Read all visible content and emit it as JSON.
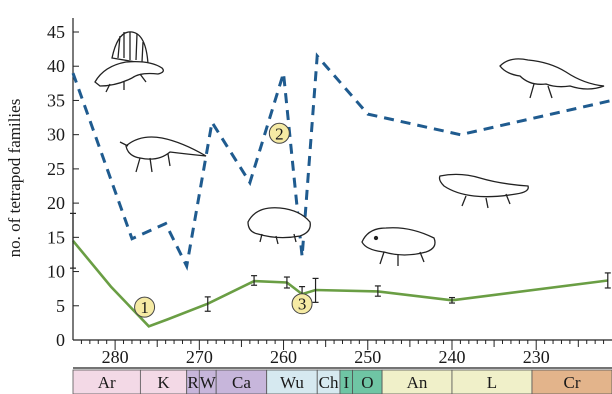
{
  "chart_data": {
    "type": "line",
    "xlabel": "",
    "ylabel": "no. of tetrapod families",
    "xlim": [
      285,
      221
    ],
    "ylim": [
      0,
      45
    ],
    "x_ticks": [
      280,
      270,
      260,
      250,
      240,
      230
    ],
    "y_ticks": [
      0,
      5,
      10,
      15,
      20,
      25,
      30,
      35,
      40,
      45
    ],
    "series": [
      {
        "style": "dashed",
        "color": "#1f5b8f",
        "points": [
          {
            "x": 285,
            "y": 39
          },
          {
            "x": 278,
            "y": 14.8
          },
          {
            "x": 274,
            "y": 17
          },
          {
            "x": 271.5,
            "y": 10.8
          },
          {
            "x": 268.5,
            "y": 31.8
          },
          {
            "x": 264,
            "y": 23
          },
          {
            "x": 260,
            "y": 39
          },
          {
            "x": 257.8,
            "y": 12.2
          },
          {
            "x": 256,
            "y": 41.5
          },
          {
            "x": 250,
            "y": 33
          },
          {
            "x": 239,
            "y": 30
          },
          {
            "x": 221,
            "y": 35
          }
        ]
      },
      {
        "style": "solid",
        "color": "#6a9e44",
        "points": [
          {
            "x": 285,
            "y": 14.5,
            "err": [
              10.5,
              18.5
            ]
          },
          {
            "x": 280.5,
            "y": 7.8
          },
          {
            "x": 276,
            "y": 2
          },
          {
            "x": 273.8,
            "y": 3
          },
          {
            "x": 269,
            "y": 5.3,
            "err": [
              4.2,
              6.3
            ]
          },
          {
            "x": 263.5,
            "y": 8.6,
            "err": [
              8.0,
              9.4
            ]
          },
          {
            "x": 259.6,
            "y": 8.4,
            "err": [
              7.6,
              9.2
            ]
          },
          {
            "x": 257.8,
            "y": 6.7,
            "err": [
              5.8,
              7.8
            ]
          },
          {
            "x": 256.2,
            "y": 7.3,
            "err": [
              5.5,
              9.0
            ]
          },
          {
            "x": 248.8,
            "y": 7.1,
            "err": [
              6.4,
              7.9
            ]
          },
          {
            "x": 240,
            "y": 5.8,
            "err": [
              5.4,
              6.2
            ]
          },
          {
            "x": 221.5,
            "y": 8.7,
            "err": [
              7.6,
              9.8
            ]
          }
        ]
      }
    ],
    "annotations": [
      {
        "text": "1",
        "x": 276.5,
        "y": 4.8
      },
      {
        "text": "2",
        "x": 260.5,
        "y": 30.2
      },
      {
        "text": "3",
        "x": 257.8,
        "y": 5.3
      }
    ],
    "stages": [
      {
        "label": "Ar",
        "from": 285,
        "to": 277,
        "color": "#f3d9e6"
      },
      {
        "label": "K",
        "from": 277,
        "to": 271.5,
        "color": "#f3d9e6"
      },
      {
        "label": "R",
        "from": 271.5,
        "to": 270,
        "color": "#c7b6db"
      },
      {
        "label": "W",
        "from": 270,
        "to": 268,
        "color": "#c7b6db"
      },
      {
        "label": "Ca",
        "from": 268,
        "to": 262,
        "color": "#c7b6db"
      },
      {
        "label": "Wu",
        "from": 262,
        "to": 256,
        "color": "#d6e9f0"
      },
      {
        "label": "Ch",
        "from": 256,
        "to": 253.3,
        "color": "#d6e9f0"
      },
      {
        "label": "I",
        "from": 253.3,
        "to": 251.8,
        "color": "#6fc5a4"
      },
      {
        "label": "O",
        "from": 251.8,
        "to": 248.3,
        "color": "#6fc5a4"
      },
      {
        "label": "An",
        "from": 248.3,
        "to": 240,
        "color": "#f0f0c9"
      },
      {
        "label": "L",
        "from": 240,
        "to": 230.5,
        "color": "#f0f0c9"
      },
      {
        "label": "Cr",
        "from": 230.5,
        "to": 221,
        "color": "#e3b48b"
      }
    ]
  }
}
